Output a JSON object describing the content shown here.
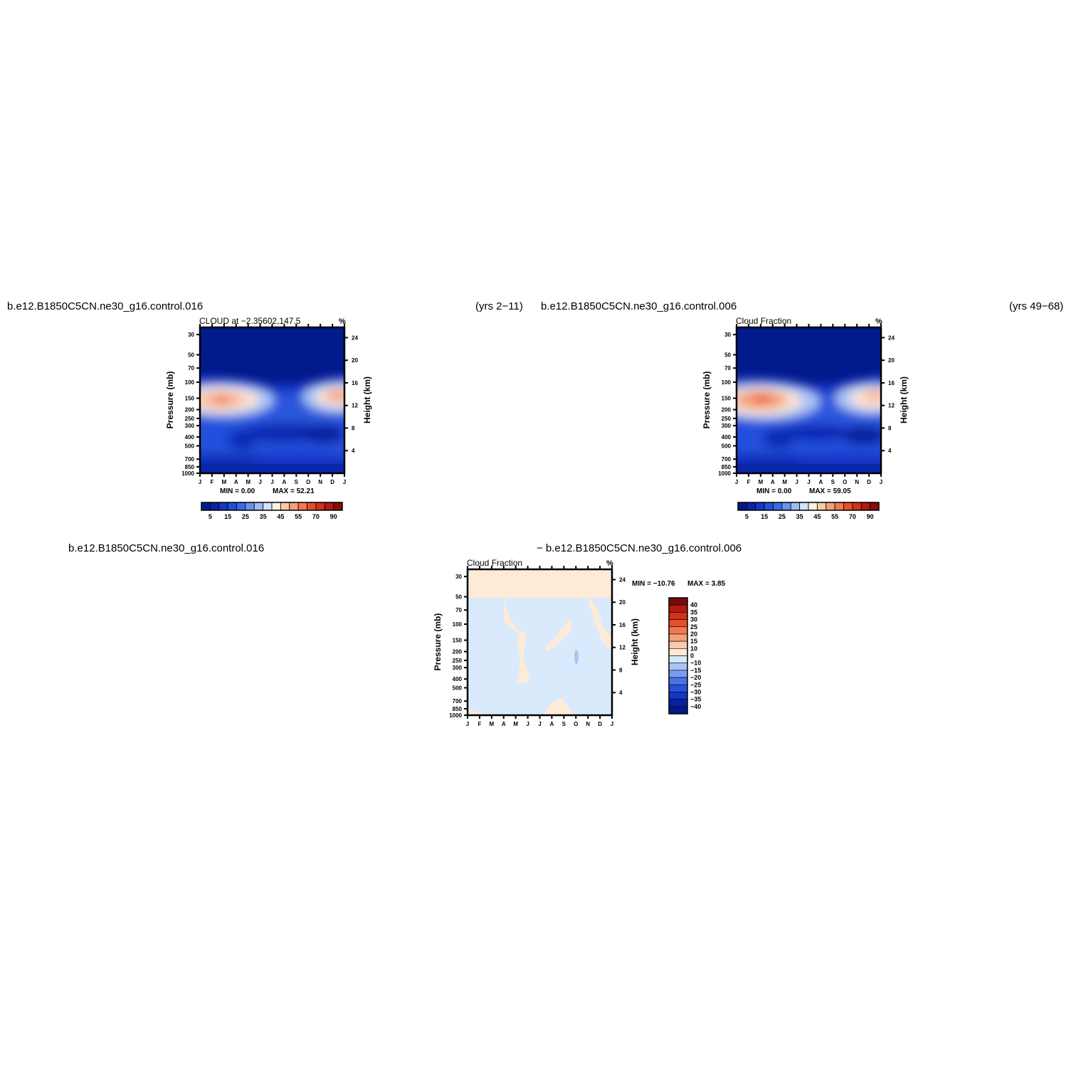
{
  "header": {
    "top_left_case": "b.e12.B1850C5CN.ne30_g16.control.016",
    "top_left_years": "(yrs 2−11)",
    "top_right_case": "b.e12.B1850C5CN.ne30_g16.control.006",
    "top_right_years": "(yrs 49−68)",
    "bottom_case_a": "b.e12.B1850C5CN.ne30_g16.control.016",
    "bottom_case_b": "−  b.e12.B1850C5CN.ne30_g16.control.006"
  },
  "chart_data": [
    {
      "type": "heatmap",
      "id": "p1",
      "title": "CLOUD at −2.35602,147.5",
      "units": "%",
      "ylabel": "Pressure (mb)",
      "ylabel_right": "Height (km)",
      "months": [
        "J",
        "F",
        "M",
        "A",
        "M",
        "J",
        "J",
        "A",
        "S",
        "O",
        "N",
        "D",
        "J"
      ],
      "pressure_ticks": [
        30,
        50,
        70,
        100,
        150,
        200,
        250,
        300,
        400,
        500,
        700,
        850,
        1000
      ],
      "height_ticks": [
        4,
        8,
        12,
        16,
        20,
        24
      ],
      "ylim": [
        1000,
        25
      ],
      "min_text": "MIN =    0.00",
      "max_text": "MAX =    52.21",
      "min": 0.0,
      "max": 52.21,
      "colorbar_labels": [
        "5",
        "15",
        "25",
        "35",
        "45",
        "55",
        "70",
        "90"
      ],
      "colors": [
        "#001a8c",
        "#0a24a8",
        "#1536c8",
        "#2050dc",
        "#3a6ae8",
        "#6d92ec",
        "#a0bcf2",
        "#d2e4fa",
        "#fdf0e4",
        "#f8caa8",
        "#f4a07a",
        "#f07a4e",
        "#e65028",
        "#d0321a",
        "#b01a10",
        "#880c0a"
      ],
      "levels": [
        0,
        5,
        10,
        15,
        20,
        25,
        30,
        35,
        40,
        45,
        50,
        55,
        60,
        70,
        80,
        90,
        100
      ]
    },
    {
      "type": "heatmap",
      "id": "p2",
      "title": "Cloud Fraction",
      "units": "%",
      "ylabel": "Pressure (mb)",
      "ylabel_right": "Height (km)",
      "months": [
        "J",
        "F",
        "M",
        "A",
        "M",
        "J",
        "J",
        "A",
        "S",
        "O",
        "N",
        "D",
        "J"
      ],
      "pressure_ticks": [
        30,
        50,
        70,
        100,
        150,
        200,
        250,
        300,
        400,
        500,
        700,
        850,
        1000
      ],
      "height_ticks": [
        4,
        8,
        12,
        16,
        20,
        24
      ],
      "ylim": [
        1000,
        25
      ],
      "min_text": "MIN =    0.00",
      "max_text": "MAX =    59.05",
      "min": 0.0,
      "max": 59.05,
      "colorbar_labels": [
        "5",
        "15",
        "25",
        "35",
        "45",
        "55",
        "70",
        "90"
      ]
    },
    {
      "type": "heatmap",
      "id": "p3",
      "title": "Cloud Fraction",
      "units": "%",
      "ylabel": "Pressure (mb)",
      "ylabel_right": "Height (km)",
      "months": [
        "J",
        "F",
        "M",
        "A",
        "M",
        "J",
        "J",
        "A",
        "S",
        "O",
        "N",
        "D",
        "J"
      ],
      "pressure_ticks": [
        30,
        50,
        70,
        100,
        150,
        200,
        250,
        300,
        400,
        500,
        700,
        850,
        1000
      ],
      "height_ticks": [
        4,
        8,
        12,
        16,
        20,
        24
      ],
      "ylim": [
        1000,
        25
      ],
      "min_text": "MIN = −10.76",
      "max_text": "MAX =     3.85",
      "min": -10.76,
      "max": 3.85,
      "colorbar_labels": [
        "40",
        "35",
        "30",
        "25",
        "20",
        "15",
        "10",
        "0",
        "−10",
        "−15",
        "−20",
        "−25",
        "−30",
        "−35",
        "−40"
      ],
      "diff_colors": [
        "#7a0a0a",
        "#b01a10",
        "#d0321a",
        "#e65028",
        "#f07a4e",
        "#f4a07a",
        "#f8caa8",
        "#fde8d8",
        "#d6e8fa",
        "#a8c4f4",
        "#7a9cf0",
        "#4a72e8",
        "#2a50dc",
        "#1536c8",
        "#0a22a0",
        "#001a8c"
      ]
    }
  ]
}
